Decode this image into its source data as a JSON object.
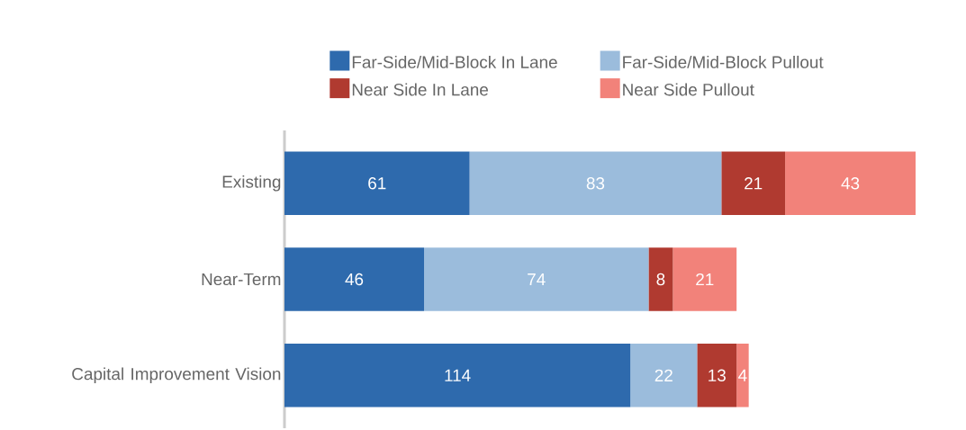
{
  "chart_data": {
    "type": "bar",
    "orientation": "horizontal",
    "stacked": true,
    "data_labels": true,
    "legend": "top",
    "tick_labels": "y",
    "categories": [
      "Existing",
      "Near-Term",
      "Capital Improvement Vision"
    ],
    "series": [
      {
        "name": "Far-Side/Mid-Block In Lane",
        "color": "#2e6aad",
        "values": [
          61,
          46,
          114
        ]
      },
      {
        "name": "Far-Side/Mid-Block Pullout",
        "color": "#9bbcdc",
        "values": [
          83,
          74,
          22
        ]
      },
      {
        "name": "Near Side In Lane",
        "color": "#b03a30",
        "values": [
          21,
          8,
          13
        ]
      },
      {
        "name": "Near Side Pullout",
        "color": "#f2827a",
        "values": [
          43,
          21,
          4
        ]
      }
    ]
  }
}
